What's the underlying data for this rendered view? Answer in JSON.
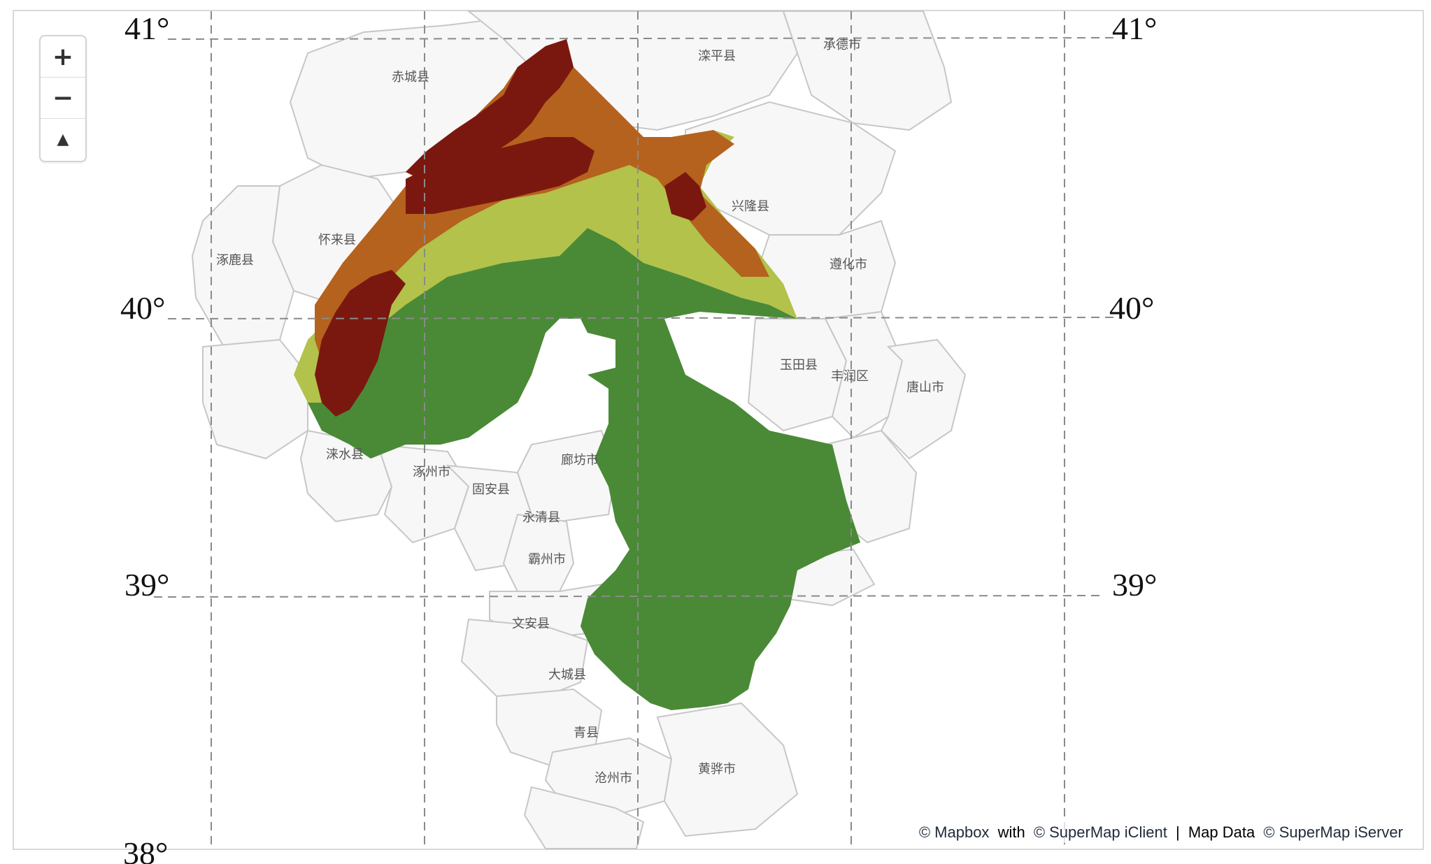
{
  "map": {
    "lat_labels": [
      "41°",
      "40°",
      "39°",
      "38°"
    ],
    "places": [
      "赤城县",
      "滦平县",
      "承德市",
      "兴隆县",
      "怀来县",
      "涿鹿县",
      "遵化市",
      "玉田县",
      "丰润区",
      "唐山市",
      "涞水县",
      "涿州市",
      "固安县",
      "廊坊市",
      "永清县",
      "霸州市",
      "文安县",
      "大城县",
      "青县",
      "沧州市",
      "黄骅市"
    ],
    "elevation_colors": {
      "lowland": "#4a8a36",
      "hills": "#b3c24a",
      "midland": "#b5621e",
      "highland": "#7a1810"
    },
    "county_fill": "#f7f7f7",
    "county_stroke": "#c7c7c7",
    "graticule_color": "#8a8a8a"
  },
  "controls": {
    "zoom_in": "+",
    "zoom_out": "−",
    "compass": "▲"
  },
  "attribution": {
    "mapbox": "© Mapbox",
    "with1": "with",
    "iclient": "© SuperMap iClient",
    "separator": "|",
    "map_data": "Map Data",
    "iserver": "© SuperMap iServer"
  }
}
